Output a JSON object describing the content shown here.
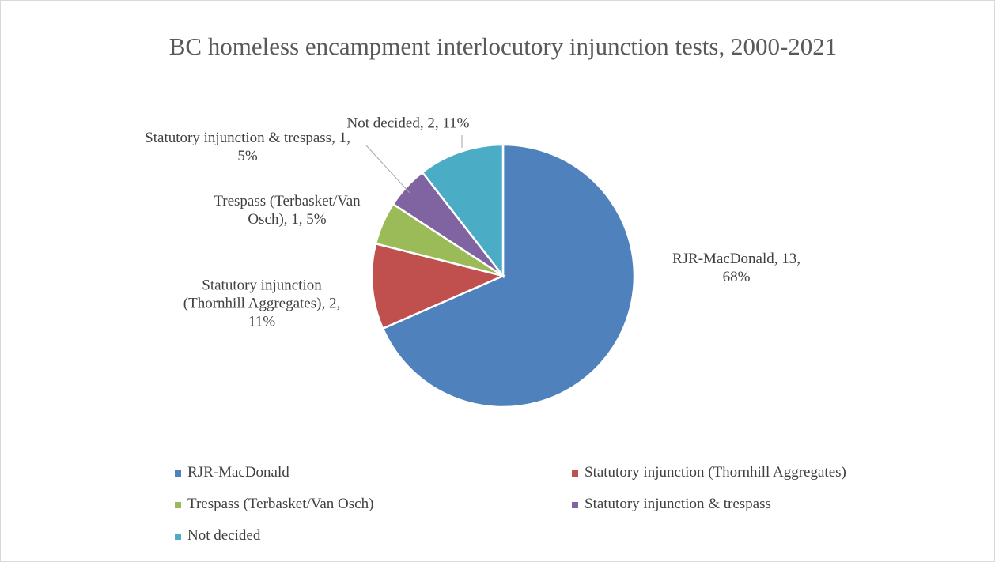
{
  "chart_data": {
    "type": "pie",
    "title": "BC homeless encampment interlocutory injunction tests, 2000-2021",
    "categories": [
      "RJR-MacDonald",
      "Statutory injunction (Thornhill Aggregates)",
      "Trespass (Terbasket/Van Osch)",
      "Statutory injunction & trespass",
      "Not decided"
    ],
    "values": [
      13,
      2,
      1,
      1,
      2
    ],
    "value_labels": [
      "RJR-MacDonald, 13, 68%",
      "Statutory injunction (Thornhill Aggregates), 2, 11%",
      "Trespass (Terbasket/Van Osch), 1, 5%",
      "Statutory injunction & trespass, 1, 5%",
      "Not decided, 2, 11%"
    ],
    "colors": [
      "#4f81bd",
      "#c0504d",
      "#9bbb59",
      "#8064a2",
      "#4bacc6"
    ],
    "legend": "bottom"
  }
}
